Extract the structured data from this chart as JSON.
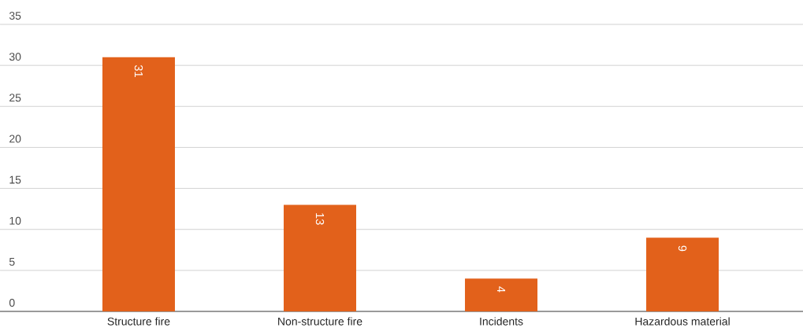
{
  "chart_data": {
    "type": "bar",
    "categories": [
      "Structure fire",
      "Non-structure fire",
      "Incidents",
      "Hazardous material"
    ],
    "values": [
      31,
      13,
      4,
      9
    ],
    "color": "#e2611b",
    "ylim": [
      0,
      35
    ],
    "yticks": [
      0,
      5,
      10,
      15,
      20,
      25,
      30,
      35
    ],
    "grid": "y",
    "data_labels": true
  }
}
